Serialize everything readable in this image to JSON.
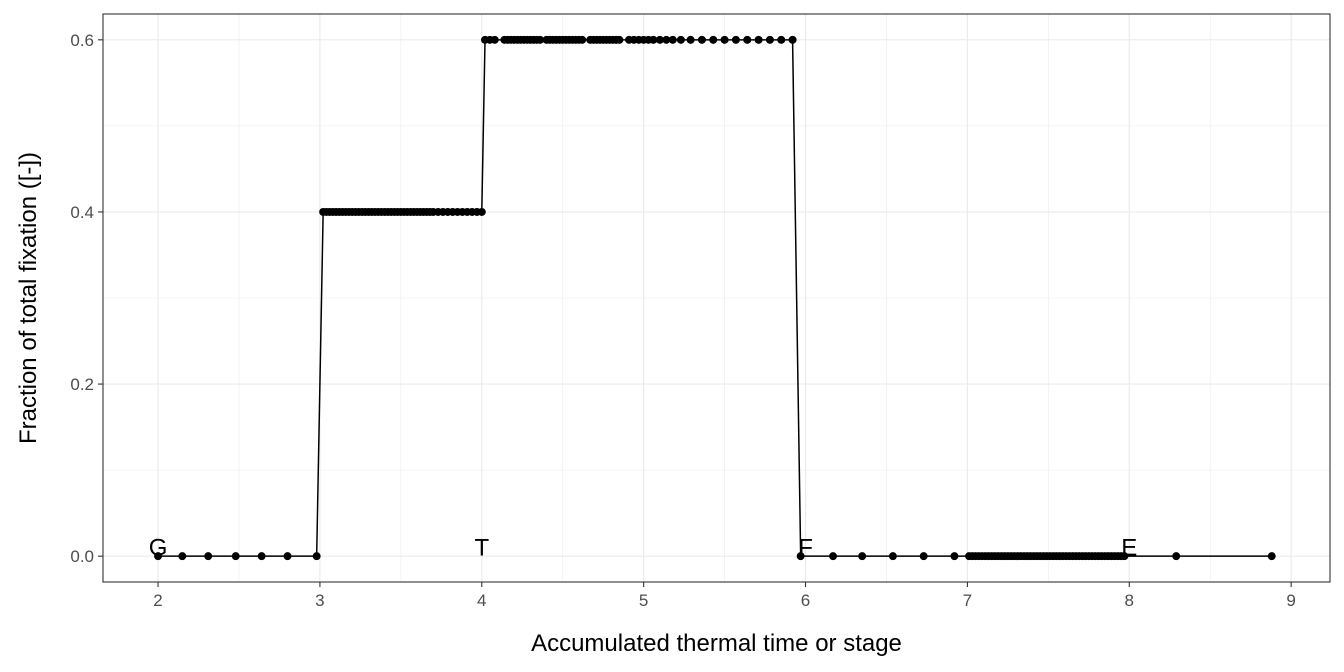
{
  "chart_data": {
    "type": "line",
    "title": "",
    "xlabel": "Accumulated thermal time or stage",
    "ylabel": "Fraction of total fixation ([-])",
    "xlim": [
      1.66,
      9.24
    ],
    "ylim": [
      -0.03,
      0.63
    ],
    "x_ticks": [
      2,
      3,
      4,
      5,
      6,
      7,
      8,
      9
    ],
    "x_tick_labels": [
      "2",
      "3",
      "4",
      "5",
      "6",
      "7",
      "8",
      "9"
    ],
    "y_ticks": [
      0.0,
      0.2,
      0.4,
      0.6
    ],
    "y_tick_labels": [
      "0.0",
      "0.2",
      "0.4",
      "0.6"
    ],
    "grid": true,
    "colors": {
      "series": "#000000",
      "grid": "#ebebeb",
      "panel_border": "#333333"
    },
    "annotations": [
      {
        "text": "G",
        "x": 2.0,
        "y": 0.0
      },
      {
        "text": "T",
        "x": 4.0,
        "y": 0.0
      },
      {
        "text": "F",
        "x": 6.0,
        "y": 0.0
      },
      {
        "text": "E",
        "x": 8.0,
        "y": 0.0
      }
    ],
    "series": [
      {
        "x": [
          2.0,
          2.15,
          2.31,
          2.48,
          2.64,
          2.8,
          2.98,
          3.02,
          3.04,
          3.06,
          3.08,
          3.1,
          3.12,
          3.14,
          3.16,
          3.18,
          3.2,
          3.22,
          3.24,
          3.26,
          3.28,
          3.3,
          3.32,
          3.34,
          3.36,
          3.38,
          3.4,
          3.42,
          3.44,
          3.46,
          3.48,
          3.5,
          3.52,
          3.54,
          3.56,
          3.58,
          3.6,
          3.62,
          3.64,
          3.66,
          3.68,
          3.7,
          3.73,
          3.76,
          3.79,
          3.82,
          3.85,
          3.88,
          3.91,
          3.94,
          3.97,
          4.0,
          4.02,
          4.05,
          4.08,
          4.14,
          4.16,
          4.18,
          4.2,
          4.22,
          4.24,
          4.26,
          4.28,
          4.3,
          4.32,
          4.34,
          4.36,
          4.4,
          4.42,
          4.44,
          4.46,
          4.48,
          4.5,
          4.52,
          4.54,
          4.56,
          4.58,
          4.6,
          4.62,
          4.67,
          4.69,
          4.71,
          4.73,
          4.75,
          4.77,
          4.79,
          4.81,
          4.83,
          4.85,
          4.91,
          4.94,
          4.97,
          5.0,
          5.03,
          5.06,
          5.1,
          5.14,
          5.18,
          5.23,
          5.29,
          5.36,
          5.43,
          5.5,
          5.57,
          5.64,
          5.71,
          5.78,
          5.85,
          5.92,
          5.97,
          6.17,
          6.35,
          6.54,
          6.73,
          6.92,
          7.01,
          7.03,
          7.05,
          7.07,
          7.09,
          7.11,
          7.13,
          7.15,
          7.17,
          7.19,
          7.21,
          7.23,
          7.25,
          7.27,
          7.29,
          7.31,
          7.33,
          7.35,
          7.37,
          7.39,
          7.41,
          7.43,
          7.45,
          7.47,
          7.49,
          7.51,
          7.53,
          7.55,
          7.57,
          7.59,
          7.61,
          7.63,
          7.65,
          7.67,
          7.69,
          7.71,
          7.73,
          7.75,
          7.77,
          7.79,
          7.81,
          7.83,
          7.85,
          7.87,
          7.89,
          7.91,
          7.93,
          7.95,
          7.97,
          8.29,
          8.88
        ],
        "y": [
          0.0,
          0.0,
          0.0,
          0.0,
          0.0,
          0.0,
          0.0,
          0.4,
          0.4,
          0.4,
          0.4,
          0.4,
          0.4,
          0.4,
          0.4,
          0.4,
          0.4,
          0.4,
          0.4,
          0.4,
          0.4,
          0.4,
          0.4,
          0.4,
          0.4,
          0.4,
          0.4,
          0.4,
          0.4,
          0.4,
          0.4,
          0.4,
          0.4,
          0.4,
          0.4,
          0.4,
          0.4,
          0.4,
          0.4,
          0.4,
          0.4,
          0.4,
          0.4,
          0.4,
          0.4,
          0.4,
          0.4,
          0.4,
          0.4,
          0.4,
          0.4,
          0.4,
          0.6,
          0.6,
          0.6,
          0.6,
          0.6,
          0.6,
          0.6,
          0.6,
          0.6,
          0.6,
          0.6,
          0.6,
          0.6,
          0.6,
          0.6,
          0.6,
          0.6,
          0.6,
          0.6,
          0.6,
          0.6,
          0.6,
          0.6,
          0.6,
          0.6,
          0.6,
          0.6,
          0.6,
          0.6,
          0.6,
          0.6,
          0.6,
          0.6,
          0.6,
          0.6,
          0.6,
          0.6,
          0.6,
          0.6,
          0.6,
          0.6,
          0.6,
          0.6,
          0.6,
          0.6,
          0.6,
          0.6,
          0.6,
          0.6,
          0.6,
          0.6,
          0.6,
          0.6,
          0.6,
          0.6,
          0.6,
          0.6,
          0.0,
          0.0,
          0.0,
          0.0,
          0.0,
          0.0,
          0.0,
          0.0,
          0.0,
          0.0,
          0.0,
          0.0,
          0.0,
          0.0,
          0.0,
          0.0,
          0.0,
          0.0,
          0.0,
          0.0,
          0.0,
          0.0,
          0.0,
          0.0,
          0.0,
          0.0,
          0.0,
          0.0,
          0.0,
          0.0,
          0.0,
          0.0,
          0.0,
          0.0,
          0.0,
          0.0,
          0.0,
          0.0,
          0.0,
          0.0,
          0.0,
          0.0,
          0.0,
          0.0,
          0.0,
          0.0,
          0.0,
          0.0,
          0.0,
          0.0,
          0.0,
          0.0,
          0.0,
          0.0,
          0.0,
          0.0,
          0.0
        ]
      }
    ]
  }
}
